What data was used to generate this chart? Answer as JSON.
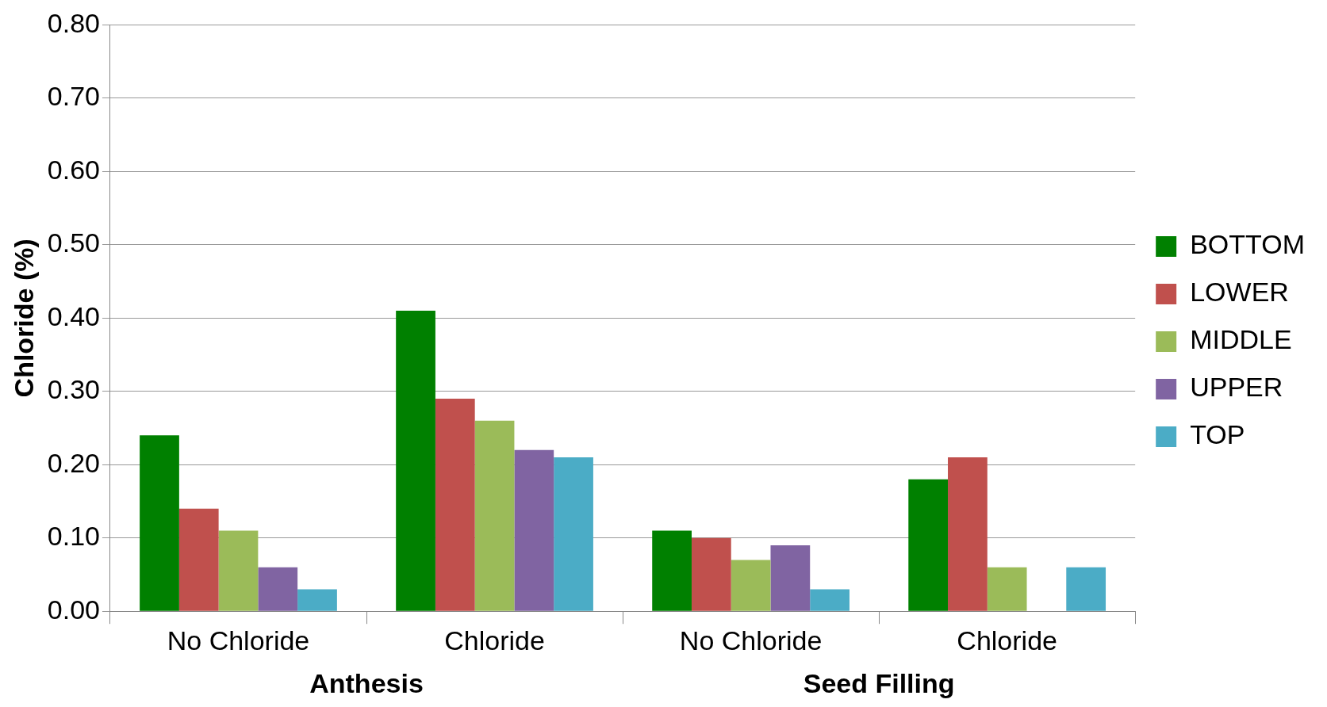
{
  "chart_data": {
    "type": "bar",
    "ylabel": "Chloride (%)",
    "categories": [
      "No Chloride",
      "Chloride",
      "No Chloride",
      "Chloride"
    ],
    "series": [
      {
        "name": "BOTTOM",
        "color": "#008000",
        "values": [
          0.24,
          0.41,
          0.11,
          0.18
        ]
      },
      {
        "name": "LOWER",
        "color": "#c0504d",
        "values": [
          0.14,
          0.29,
          0.1,
          0.21
        ]
      },
      {
        "name": "MIDDLE",
        "color": "#9bbb59",
        "values": [
          0.11,
          0.26,
          0.07,
          0.06
        ]
      },
      {
        "name": "UPPER",
        "color": "#8064a2",
        "values": [
          0.06,
          0.22,
          0.09,
          0
        ]
      },
      {
        "name": "TOP",
        "color": "#4bacc6",
        "values": [
          0.03,
          0.21,
          0.03,
          0.06
        ]
      }
    ],
    "ylim": [
      0,
      0.8
    ],
    "yticks": [
      {
        "value": 0,
        "label": "0.00"
      },
      {
        "value": 0.1,
        "label": "0.10"
      },
      {
        "value": 0.2,
        "label": "0.20"
      },
      {
        "value": 0.3,
        "label": "0.30"
      },
      {
        "value": 0.4,
        "label": "0.40"
      },
      {
        "value": 0.5,
        "label": "0.50"
      },
      {
        "value": 0.6,
        "label": "0.60"
      },
      {
        "value": 0.7,
        "label": "0.70"
      },
      {
        "value": 0.8,
        "label": "0.80"
      }
    ],
    "grid": "y",
    "legend": "right",
    "annotations": [
      "Anthesis",
      "Seed Filling"
    ]
  }
}
